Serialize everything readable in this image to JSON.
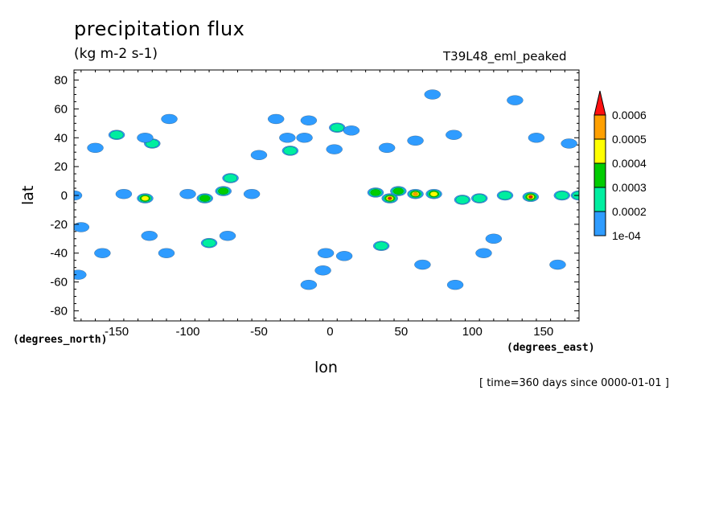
{
  "chart_data": {
    "type": "heatmap",
    "title": "precipitation flux",
    "units": "(kg m-2 s-1)",
    "run_label": "T39L48_eml_peaked",
    "time_info": "[ time=360 days since 0000-01-01 ]",
    "xlabel": "lon",
    "ylabel": "lat",
    "x_units": "(degrees_east)",
    "y_units": "(degrees_north)",
    "xlim": [
      -180,
      175
    ],
    "ylim": [
      -87,
      87
    ],
    "x_ticks": [
      -150,
      -100,
      -50,
      0,
      50,
      100,
      150
    ],
    "y_ticks": [
      80,
      60,
      40,
      20,
      0,
      -20,
      -40,
      -60,
      -80
    ],
    "x_tick_labels": [
      "-150",
      "-100",
      "-50",
      "0",
      "50",
      "100",
      "150"
    ],
    "y_tick_labels": [
      "80",
      "60",
      "40",
      "20",
      "0",
      "-20",
      "-40",
      "-60",
      "-80"
    ],
    "colorbar": {
      "levels": [
        "1e-04",
        "0.0002",
        "0.0003",
        "0.0004",
        "0.0005",
        "0.0006"
      ],
      "colors": [
        "#2f9cff",
        "#00eea0",
        "#00cc00",
        "#ffff00",
        "#ffa000",
        "#ff1010"
      ],
      "extend": "max"
    },
    "features": [
      {
        "lon": -180,
        "lat": 0,
        "level": 1
      },
      {
        "lon": -175,
        "lat": -22,
        "level": 1
      },
      {
        "lon": -177,
        "lat": -55,
        "level": 1
      },
      {
        "lon": -160,
        "lat": -40,
        "level": 1
      },
      {
        "lon": -165,
        "lat": 33,
        "level": 1
      },
      {
        "lon": -150,
        "lat": 42,
        "level": 2
      },
      {
        "lon": -125,
        "lat": 36,
        "level": 2
      },
      {
        "lon": -130,
        "lat": 40,
        "level": 1
      },
      {
        "lon": -113,
        "lat": 53,
        "level": 1
      },
      {
        "lon": -145,
        "lat": 1,
        "level": 1
      },
      {
        "lon": -130,
        "lat": -2,
        "level": 4
      },
      {
        "lon": -127,
        "lat": -28,
        "level": 1
      },
      {
        "lon": -115,
        "lat": -40,
        "level": 1
      },
      {
        "lon": -100,
        "lat": 1,
        "level": 1
      },
      {
        "lon": -88,
        "lat": -2,
        "level": 3
      },
      {
        "lon": -85,
        "lat": -33,
        "level": 2
      },
      {
        "lon": -75,
        "lat": 3,
        "level": 3
      },
      {
        "lon": -70,
        "lat": 12,
        "level": 2
      },
      {
        "lon": -72,
        "lat": -28,
        "level": 1
      },
      {
        "lon": -55,
        "lat": 1,
        "level": 1
      },
      {
        "lon": -50,
        "lat": 28,
        "level": 1
      },
      {
        "lon": -38,
        "lat": 53,
        "level": 1
      },
      {
        "lon": -30,
        "lat": 40,
        "level": 1
      },
      {
        "lon": -28,
        "lat": 31,
        "level": 2
      },
      {
        "lon": -15,
        "lat": 52,
        "level": 1
      },
      {
        "lon": -18,
        "lat": 40,
        "level": 1
      },
      {
        "lon": -15,
        "lat": -62,
        "level": 1
      },
      {
        "lon": -3,
        "lat": -40,
        "level": 1
      },
      {
        "lon": -5,
        "lat": -52,
        "level": 1
      },
      {
        "lon": 5,
        "lat": 47,
        "level": 2
      },
      {
        "lon": 15,
        "lat": 45,
        "level": 1
      },
      {
        "lon": 3,
        "lat": 32,
        "level": 1
      },
      {
        "lon": 10,
        "lat": -42,
        "level": 1
      },
      {
        "lon": 32,
        "lat": 2,
        "level": 3
      },
      {
        "lon": 42,
        "lat": -2,
        "level": 6
      },
      {
        "lon": 48,
        "lat": 3,
        "level": 3
      },
      {
        "lon": 60,
        "lat": 1,
        "level": 5
      },
      {
        "lon": 73,
        "lat": 1,
        "level": 4
      },
      {
        "lon": 40,
        "lat": 33,
        "level": 1
      },
      {
        "lon": 60,
        "lat": 38,
        "level": 1
      },
      {
        "lon": 36,
        "lat": -35,
        "level": 2
      },
      {
        "lon": 65,
        "lat": -48,
        "level": 1
      },
      {
        "lon": 72,
        "lat": 70,
        "level": 1
      },
      {
        "lon": 87,
        "lat": 42,
        "level": 1
      },
      {
        "lon": 93,
        "lat": -3,
        "level": 2
      },
      {
        "lon": 105,
        "lat": -2,
        "level": 2
      },
      {
        "lon": 88,
        "lat": -62,
        "level": 1
      },
      {
        "lon": 115,
        "lat": -30,
        "level": 1
      },
      {
        "lon": 108,
        "lat": -40,
        "level": 1
      },
      {
        "lon": 123,
        "lat": 0,
        "level": 2
      },
      {
        "lon": 141,
        "lat": -1,
        "level": 6
      },
      {
        "lon": 163,
        "lat": 0,
        "level": 2
      },
      {
        "lon": 175,
        "lat": 0,
        "level": 2
      },
      {
        "lon": 145,
        "lat": 40,
        "level": 1
      },
      {
        "lon": 130,
        "lat": 66,
        "level": 1
      },
      {
        "lon": 168,
        "lat": 36,
        "level": 1
      },
      {
        "lon": 160,
        "lat": -48,
        "level": 1
      }
    ]
  }
}
